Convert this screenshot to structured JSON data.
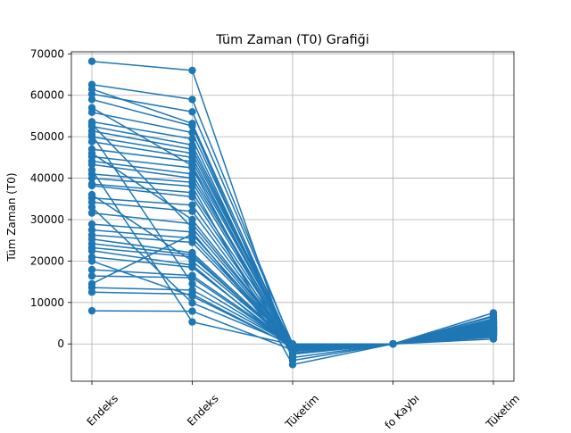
{
  "chart_data": {
    "type": "line",
    "title": "Tüm Zaman (T0) Grafiği",
    "xlabel": "",
    "ylabel": "Tüm Zaman (T0)",
    "categories": [
      "Endeks",
      "Son Endeks",
      "Tüketim",
      "Trafo Kaybı",
      "Toplam Tüketim"
    ],
    "visible_category_labels": [
      "Endeks",
      "Endeks",
      "Tüketim",
      "fo Kaybı",
      "Tüketim"
    ],
    "ylim": [
      -9000,
      70500
    ],
    "yticks": [
      0,
      10000,
      20000,
      30000,
      40000,
      50000,
      60000,
      70000
    ],
    "ytick_labels": [
      "0",
      "10000",
      "20000",
      "30000",
      "40000",
      "50000",
      "60000",
      "70000"
    ],
    "grid": true,
    "legend": "none",
    "color": "#1f77b4",
    "series": [
      {
        "values": [
          68200,
          66000,
          -4000,
          0,
          2000
        ]
      },
      {
        "values": [
          62600,
          59000,
          -300,
          0,
          3600
        ]
      },
      {
        "values": [
          61500,
          53200,
          -1000,
          0,
          4200
        ]
      },
      {
        "values": [
          60300,
          56000,
          0,
          0,
          5000
        ]
      },
      {
        "values": [
          59000,
          52600,
          -2500,
          0,
          6100
        ]
      },
      {
        "values": [
          55900,
          51000,
          -600,
          0,
          3000
        ]
      },
      {
        "values": [
          53600,
          49500,
          -1800,
          0,
          7500
        ]
      },
      {
        "values": [
          52500,
          48000,
          -500,
          0,
          2500
        ]
      },
      {
        "values": [
          51400,
          47000,
          -300,
          0,
          4600
        ]
      },
      {
        "values": [
          50000,
          46000,
          -200,
          0,
          3800
        ]
      },
      {
        "values": [
          48800,
          45000,
          -900,
          0,
          5600
        ]
      },
      {
        "values": [
          47000,
          44000,
          -100,
          0,
          1200
        ]
      },
      {
        "values": [
          45200,
          42500,
          -3300,
          0,
          6600
        ]
      },
      {
        "values": [
          44100,
          41000,
          -400,
          0,
          2900
        ]
      },
      {
        "values": [
          43300,
          40000,
          -200,
          0,
          4100
        ]
      },
      {
        "values": [
          41000,
          39000,
          -700,
          0,
          5200
        ]
      },
      {
        "values": [
          40000,
          38000,
          -5000,
          0,
          3300
        ]
      },
      {
        "values": [
          38600,
          36500,
          -300,
          0,
          1600
        ]
      },
      {
        "values": [
          38200,
          35500,
          -1300,
          0,
          4800
        ]
      },
      {
        "values": [
          35200,
          33500,
          -200,
          0,
          2200
        ]
      },
      {
        "values": [
          34200,
          32000,
          -600,
          0,
          3700
        ]
      },
      {
        "values": [
          31600,
          29000,
          -100,
          0,
          5400
        ]
      },
      {
        "values": [
          28900,
          27000,
          -2200,
          0,
          4300
        ]
      },
      {
        "values": [
          26300,
          24500,
          -400,
          0,
          2700
        ]
      },
      {
        "values": [
          25300,
          22000,
          -300,
          0,
          3900
        ]
      },
      {
        "values": [
          24200,
          21500,
          -800,
          0,
          1900
        ]
      },
      {
        "values": [
          23200,
          21000,
          -200,
          0,
          4500
        ]
      },
      {
        "values": [
          22500,
          19000,
          -1000,
          0,
          3500
        ]
      },
      {
        "values": [
          21000,
          18500,
          -300,
          0,
          2400
        ]
      },
      {
        "values": [
          17900,
          16500,
          -100,
          0,
          5800
        ]
      },
      {
        "values": [
          16400,
          16000,
          -400,
          0,
          3100
        ]
      },
      {
        "values": [
          13600,
          13000,
          -200,
          0,
          4700
        ]
      },
      {
        "values": [
          12500,
          12000,
          -600,
          0,
          2600
        ]
      },
      {
        "values": [
          8000,
          7900,
          -1500,
          0,
          3400
        ]
      },
      {
        "values": [
          27500,
          25500,
          -300,
          0,
          4000
        ]
      },
      {
        "values": [
          46000,
          30000,
          -200,
          0,
          3300
        ]
      },
      {
        "values": [
          53000,
          28000,
          -400,
          0,
          2800
        ]
      },
      {
        "values": [
          36000,
          20000,
          -100,
          0,
          4400
        ]
      },
      {
        "values": [
          50500,
          14500,
          -300,
          0,
          3600
        ]
      },
      {
        "values": [
          42000,
          5300,
          -200,
          0,
          5100
        ]
      },
      {
        "values": [
          33000,
          9900,
          -100,
          0,
          2100
        ]
      },
      {
        "values": [
          20000,
          11500,
          -500,
          0,
          6800
        ]
      },
      {
        "values": [
          14500,
          26500,
          -300,
          0,
          3200
        ]
      },
      {
        "values": [
          57000,
          43000,
          -200,
          0,
          4900
        ]
      }
    ]
  }
}
